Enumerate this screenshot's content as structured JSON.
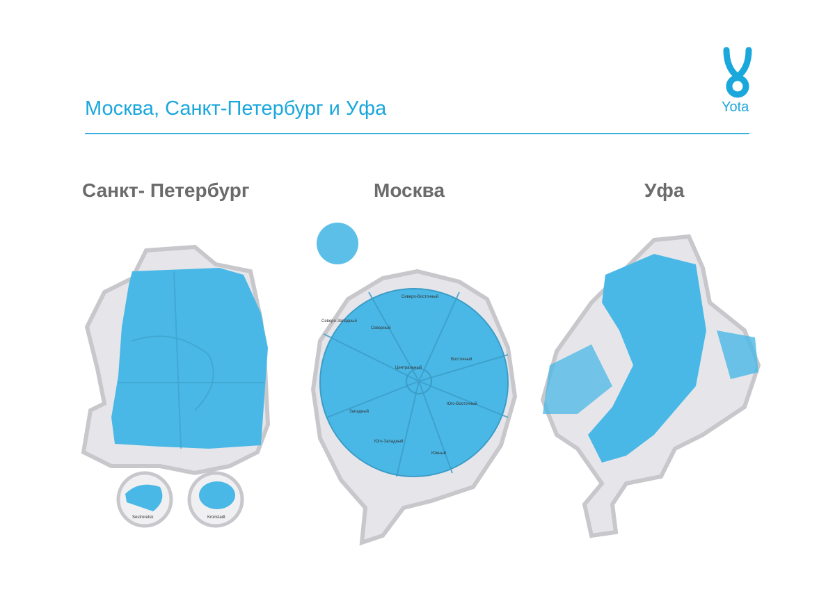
{
  "header": {
    "title": "Москва, Санкт-Петербург и Уфа",
    "logo_text": "Yota"
  },
  "colors": {
    "accent": "#1aa7dc",
    "coverage": "#4ab8e6",
    "city_area": "#e6e6ea",
    "city_border": "#c8c8cc",
    "heading": "#6b6b6b"
  },
  "maps": [
    {
      "city": "Санкт- Петербург",
      "insets": [
        "Sestroretsk",
        "Kronstadt"
      ]
    },
    {
      "city": "Москва",
      "districts": [
        "Северо-Восточный",
        "Северо-Западный",
        "Северный",
        "Восточный",
        "Центральный",
        "Юго-Восточный",
        "Западный",
        "Юго-Западный",
        "Южный"
      ]
    },
    {
      "city": "Уфа"
    }
  ]
}
